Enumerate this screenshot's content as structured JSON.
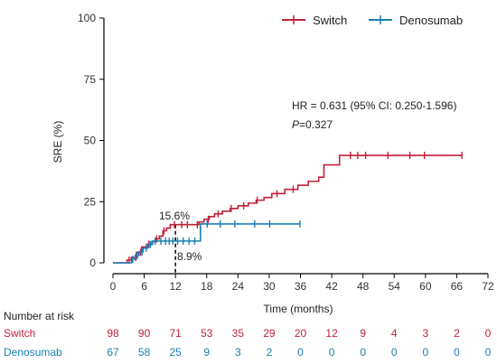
{
  "chart_data": {
    "type": "line",
    "xlabel": "Time (months)",
    "ylabel": "SRE (%)",
    "xlim": [
      0,
      72
    ],
    "ylim": [
      0,
      100
    ],
    "xticks": [
      0,
      6,
      12,
      18,
      24,
      30,
      36,
      42,
      48,
      54,
      60,
      66,
      72
    ],
    "yticks": [
      0,
      25,
      50,
      75,
      100
    ],
    "legend_position": "top-right",
    "colors": {
      "switch": "#c0213a",
      "denosumab": "#1a7fb5",
      "axis": "#000000"
    },
    "series": [
      {
        "name": "Switch",
        "color": "#c0213a",
        "x": [
          0,
          1.5,
          2.7,
          3.5,
          4.5,
          5.5,
          6.5,
          7.5,
          8.2,
          8.9,
          9.6,
          10.3,
          11,
          12,
          15.5,
          16.5,
          17.5,
          18.5,
          19.5,
          21,
          22.5,
          24,
          26,
          27.5,
          29,
          30.5,
          33,
          35.5,
          37.5,
          39.5,
          40.5,
          42,
          43.5,
          67
        ],
        "y": [
          0,
          0,
          1.1,
          2.2,
          4.3,
          6.5,
          7.6,
          8.7,
          9.8,
          10.9,
          13.1,
          14.2,
          15.6,
          15.6,
          15.6,
          16.7,
          17.8,
          18.9,
          20,
          21.1,
          22.2,
          23.3,
          24.4,
          25.6,
          26.7,
          28.3,
          30,
          31.7,
          33.3,
          35,
          40,
          40,
          43.9,
          43.9
        ],
        "censor_x": [
          3.1,
          4.4,
          5.3,
          6.9,
          8.4,
          9.8,
          11.8,
          13.2,
          14.3,
          16.2,
          18.3,
          20.2,
          22.7,
          25.1,
          27.7,
          31.5,
          34.6,
          45.6,
          47,
          48.5,
          52.8,
          57,
          59.8,
          67
        ]
      },
      {
        "name": "Denosumab",
        "color": "#1a7fb5",
        "x": [
          0,
          3,
          3.6,
          4.3,
          5,
          5.8,
          6.7,
          7.6,
          8.6,
          9.7,
          12,
          16.8,
          36
        ],
        "y": [
          0,
          0,
          1.5,
          3,
          4.5,
          6,
          7.5,
          8.9,
          8.9,
          8.9,
          8.9,
          15.9,
          15.9
        ],
        "censor_x": [
          3.8,
          4.7,
          5.6,
          6.4,
          7.2,
          8.1,
          9.2,
          10.1,
          10.8,
          11.5,
          12.4,
          13.5,
          14.6,
          15.7,
          18.1,
          20.6,
          23.4,
          27.2,
          30.1,
          35.9
        ]
      }
    ],
    "annotations": [
      {
        "text": "15.6%",
        "x": 12,
        "y": 15.6
      },
      {
        "text": "8.9%",
        "x": 12,
        "y": 8.9
      }
    ],
    "hr_text": "HR = 0.631 (95% CI: 0.250-1.596)",
    "p_label": "P",
    "p_value": "=0.327",
    "risk_table": {
      "title": "Number at risk",
      "timepoints": [
        0,
        6,
        12,
        18,
        24,
        30,
        36,
        42,
        48,
        54,
        60,
        66,
        72
      ],
      "rows": [
        {
          "name": "Switch",
          "values": [
            98,
            90,
            71,
            53,
            35,
            29,
            20,
            12,
            9,
            4,
            3,
            2,
            0
          ]
        },
        {
          "name": "Denosumab",
          "values": [
            67,
            58,
            25,
            9,
            3,
            2,
            0,
            0,
            0,
            0,
            0,
            0,
            0
          ]
        }
      ]
    }
  }
}
